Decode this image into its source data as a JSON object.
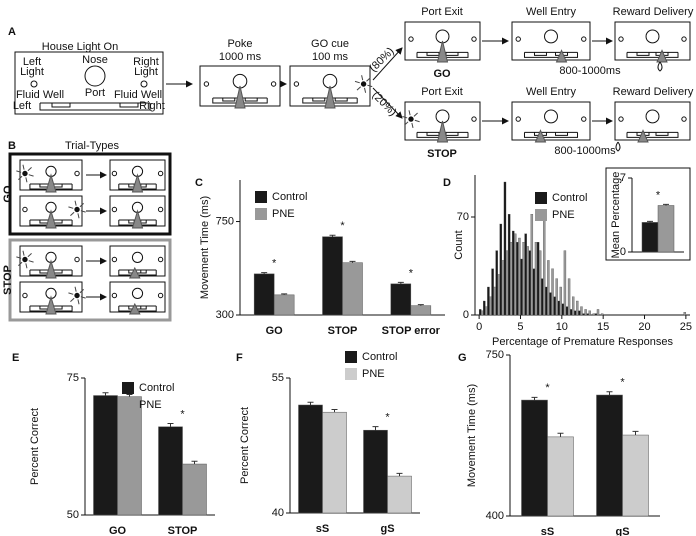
{
  "diagram": {
    "panel_a": {
      "label": "A",
      "start": {
        "title": "House Light On",
        "nose_port": [
          "Nose",
          "Port"
        ],
        "left_light": [
          "Left",
          "Light"
        ],
        "right_light": [
          "Right",
          "Light"
        ],
        "left_well": [
          "Fluid Well",
          "Left"
        ],
        "right_well": [
          "Fluid Well",
          "Right"
        ]
      },
      "poke": [
        "Poke",
        "1000 ms"
      ],
      "cue": [
        "GO cue",
        "100 ms"
      ],
      "branches": [
        {
          "percent": "(80%)",
          "steps": [
            "Port Exit",
            "Well Entry",
            "Reward Delivery"
          ],
          "name": "GO",
          "delay": "800-1000ms"
        },
        {
          "percent": "(20%)",
          "steps": [
            "Port Exit",
            "Well Entry",
            "Reward Delivery"
          ],
          "name": "STOP",
          "delay": "800-1000ms"
        }
      ]
    },
    "panel_b": {
      "label": "B",
      "title": "Trial-Types",
      "rows": [
        "GO",
        "STOP"
      ]
    }
  },
  "chart_data": [
    {
      "type": "bar",
      "label": "C",
      "ylabel": "Movement Time (ms)",
      "categories": [
        "GO",
        "STOP",
        "STOP error"
      ],
      "ylim": [
        300,
        950
      ],
      "yticks": [
        300,
        750
      ],
      "legend": "upper left",
      "series": [
        {
          "name": "Control",
          "color": "#1a1a1a",
          "values": [
            498,
            677,
            450
          ],
          "errors": [
            6,
            7,
            7
          ]
        },
        {
          "name": "PNE",
          "color": "#999999",
          "values": [
            397,
            552,
            345
          ],
          "errors": [
            5,
            6,
            5
          ]
        }
      ],
      "significance": [
        "*",
        "*",
        "*"
      ]
    },
    {
      "type": "histogram",
      "label": "D",
      "xlabel": "Percentage of Premature Responses",
      "ylabel": "Count",
      "bins": [
        0,
        0.5,
        1,
        1.5,
        2,
        2.5,
        3,
        3.5,
        4,
        4.5,
        5,
        5.5,
        6,
        6.5,
        7,
        7.5,
        8,
        8.5,
        9,
        9.5,
        10,
        10.5,
        11,
        11.5,
        12,
        12.5,
        13,
        13.5,
        14,
        14.5,
        15,
        15.5,
        16,
        16.5,
        17,
        17.5,
        18,
        18.5,
        19,
        19.5,
        20,
        20.5,
        21,
        21.5,
        22,
        22.5,
        23,
        23.5,
        24,
        24.5,
        25,
        25.5
      ],
      "xlim": [
        -0.5,
        25.5
      ],
      "xticks": [
        0,
        5,
        10,
        15,
        20,
        25
      ],
      "ylim": [
        0,
        100
      ],
      "yticks": [
        0,
        70
      ],
      "legend": "upper center",
      "series": [
        {
          "name": "Control",
          "color": "#1a1a1a",
          "values": [
            4,
            10,
            20,
            33,
            46,
            65,
            95,
            72,
            60,
            52,
            40,
            58,
            46,
            33,
            52,
            26,
            20,
            16,
            13,
            10,
            8,
            6,
            4,
            3,
            3,
            1,
            1,
            0,
            1,
            0,
            0,
            0,
            0,
            0,
            0,
            0,
            0,
            0,
            0,
            0,
            0,
            0,
            0,
            0,
            0,
            0,
            0,
            0,
            0,
            0,
            0
          ]
        },
        {
          "name": "PNE",
          "color": "#999999",
          "values": [
            3,
            6,
            13,
            20,
            29,
            39,
            46,
            52,
            58,
            55,
            52,
            49,
            72,
            52,
            46,
            75,
            39,
            33,
            26,
            20,
            46,
            26,
            13,
            10,
            6,
            4,
            3,
            1,
            4,
            1,
            0,
            0,
            0,
            0,
            0,
            0,
            0,
            0,
            0,
            0,
            0,
            0,
            0,
            0,
            0,
            0,
            0,
            0,
            0,
            2,
            0
          ]
        }
      ],
      "inset": {
        "type": "bar",
        "ylabel": "Mean Percentage",
        "ylim": [
          0,
          7
        ],
        "yticks": [
          0,
          7
        ],
        "series": [
          {
            "color": "#1a1a1a",
            "values": [
              2.8
            ],
            "errors": [
              0.1
            ]
          },
          {
            "color": "#999999",
            "values": [
              4.4
            ],
            "errors": [
              0.1
            ]
          }
        ],
        "significance": [
          "*"
        ]
      }
    },
    {
      "type": "bar",
      "label": "E",
      "ylabel": "Percent Correct",
      "categories": [
        "GO",
        "STOP"
      ],
      "ylim": [
        50,
        75
      ],
      "yticks": [
        50,
        75
      ],
      "legend": "upper right",
      "series": [
        {
          "name": "Control",
          "color": "#1a1a1a",
          "values": [
            71.8,
            66.1
          ],
          "errors": [
            0.5,
            0.6
          ]
        },
        {
          "name": "PNE",
          "color": "#999999",
          "values": [
            71.6,
            59.3
          ],
          "errors": [
            0.4,
            0.5
          ]
        }
      ],
      "significance": [
        null,
        "*"
      ]
    },
    {
      "type": "bar",
      "label": "F",
      "ylabel": "Percent Correct",
      "categories": [
        "sS",
        "gS"
      ],
      "ylim": [
        40,
        55
      ],
      "yticks": [
        40,
        55
      ],
      "legend": "above",
      "series": [
        {
          "name": "Control",
          "color": "#1a1a1a",
          "values": [
            52.0,
            49.2
          ],
          "errors": [
            0.3,
            0.4
          ]
        },
        {
          "name": "PNE",
          "color": "#cccccc",
          "values": [
            51.2,
            44.1
          ],
          "errors": [
            0.3,
            0.3
          ]
        }
      ],
      "significance": [
        null,
        "*"
      ]
    },
    {
      "type": "bar",
      "label": "G",
      "ylabel": "Movement Time (ms)",
      "categories": [
        "sS",
        "gS"
      ],
      "ylim": [
        400,
        750
      ],
      "yticks": [
        400,
        750
      ],
      "series": [
        {
          "color": "#1a1a1a",
          "values": [
            652,
            663
          ],
          "errors": [
            6,
            7
          ]
        },
        {
          "color": "#cccccc",
          "values": [
            572,
            576
          ],
          "errors": [
            8,
            8
          ]
        }
      ],
      "significance": [
        "*",
        "*"
      ]
    }
  ]
}
